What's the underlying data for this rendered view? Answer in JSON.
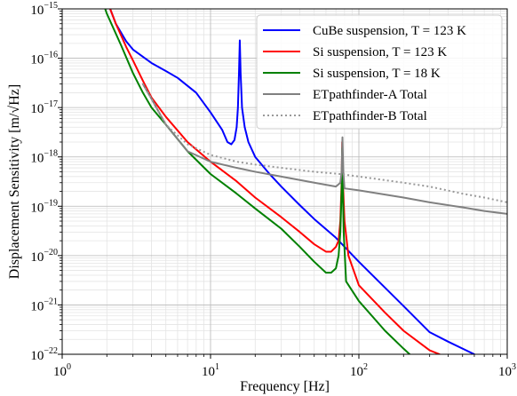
{
  "chart_data": {
    "type": "line",
    "xlabel": "Frequency [Hz]",
    "ylabel": "Displacement Sensitivity [m/√Hz]",
    "xscale": "log",
    "yscale": "log",
    "xlim": [
      1,
      1000
    ],
    "ylim": [
      1e-22,
      1e-15
    ],
    "grid": "on (major and minor)",
    "legend_position": "top-right",
    "x_ticks": [
      {
        "base": "10",
        "exp": "0",
        "value": 1
      },
      {
        "base": "10",
        "exp": "1",
        "value": 10
      },
      {
        "base": "10",
        "exp": "2",
        "value": 100
      },
      {
        "base": "10",
        "exp": "3",
        "value": 1000
      }
    ],
    "y_ticks": [
      {
        "base": "10",
        "exp": "−22",
        "value": 1e-22
      },
      {
        "base": "10",
        "exp": "−21",
        "value": 1e-21
      },
      {
        "base": "10",
        "exp": "−20",
        "value": 1e-20
      },
      {
        "base": "10",
        "exp": "−19",
        "value": 1e-19
      },
      {
        "base": "10",
        "exp": "−18",
        "value": 1e-18
      },
      {
        "base": "10",
        "exp": "−17",
        "value": 1e-17
      },
      {
        "base": "10",
        "exp": "−16",
        "value": 1e-16
      },
      {
        "base": "10",
        "exp": "−15",
        "value": 1e-15
      }
    ],
    "series": [
      {
        "name": "CuBe suspension, T = 123 K",
        "color": "#0000ff",
        "style": "solid",
        "points": [
          [
            2.0,
            1.5e-15
          ],
          [
            2.3,
            5e-16
          ],
          [
            2.7,
            2.2e-16
          ],
          [
            3.0,
            1.5e-16
          ],
          [
            4,
            8e-17
          ],
          [
            5,
            5.5e-17
          ],
          [
            6,
            4e-17
          ],
          [
            8,
            2e-17
          ],
          [
            10,
            8e-18
          ],
          [
            12,
            3.5e-18
          ],
          [
            13,
            2e-18
          ],
          [
            13.8,
            1.8e-18
          ],
          [
            14.5,
            2.2e-18
          ],
          [
            15.0,
            4e-18
          ],
          [
            15.3,
            1e-17
          ],
          [
            15.55,
            5e-17
          ],
          [
            15.75,
            2.3e-16
          ],
          [
            15.95,
            5e-17
          ],
          [
            16.3,
            1e-17
          ],
          [
            17,
            4e-18
          ],
          [
            18,
            2e-18
          ],
          [
            20,
            1e-18
          ],
          [
            25,
            4.5e-19
          ],
          [
            30,
            2.5e-19
          ],
          [
            40,
            1.05e-19
          ],
          [
            50,
            5.5e-20
          ],
          [
            70,
            2.3e-20
          ],
          [
            100,
            7.5e-21
          ],
          [
            200,
            9.5e-22
          ],
          [
            300,
            2.8e-22
          ],
          [
            400,
            1.8e-22
          ],
          [
            600,
            1e-22
          ]
        ]
      },
      {
        "name": "Si suspension, T = 123 K",
        "color": "#ff0000",
        "style": "solid",
        "points": [
          [
            2.0,
            1.5e-15
          ],
          [
            2.3,
            5e-16
          ],
          [
            2.7,
            1.7e-16
          ],
          [
            3.0,
            9e-17
          ],
          [
            3.5,
            3.5e-17
          ],
          [
            4,
            1.6e-17
          ],
          [
            5,
            6.5e-18
          ],
          [
            7,
            2e-18
          ],
          [
            10,
            8e-19
          ],
          [
            15,
            3.2e-19
          ],
          [
            20,
            1.5e-19
          ],
          [
            30,
            6e-20
          ],
          [
            40,
            3e-20
          ],
          [
            50,
            1.7e-20
          ],
          [
            60,
            1.2e-20
          ],
          [
            65,
            1.2e-20
          ],
          [
            70,
            1.5e-20
          ],
          [
            73,
            2e-20
          ],
          [
            75,
            5e-20
          ],
          [
            76.5,
            3e-19
          ],
          [
            77.2,
            2e-18
          ],
          [
            78,
            3e-19
          ],
          [
            80,
            5e-20
          ],
          [
            85,
            1e-20
          ],
          [
            100,
            2.5e-21
          ],
          [
            150,
            7e-22
          ],
          [
            200,
            3e-22
          ],
          [
            300,
            1.2e-22
          ],
          [
            350,
            1e-22
          ]
        ]
      },
      {
        "name": "Si suspension, T = 18 K",
        "color": "#008000",
        "style": "solid",
        "points": [
          [
            1.8,
            2e-15
          ],
          [
            2.0,
            8e-16
          ],
          [
            2.5,
            1.8e-16
          ],
          [
            3.0,
            5e-17
          ],
          [
            3.5,
            2e-17
          ],
          [
            4,
            1e-17
          ],
          [
            5,
            4.5e-18
          ],
          [
            7,
            1.3e-18
          ],
          [
            10,
            4.5e-19
          ],
          [
            15,
            1.8e-19
          ],
          [
            20,
            9e-20
          ],
          [
            30,
            3.5e-20
          ],
          [
            40,
            1.5e-20
          ],
          [
            50,
            7.5e-21
          ],
          [
            60,
            4.5e-21
          ],
          [
            65,
            4.5e-21
          ],
          [
            70,
            5.5e-21
          ],
          [
            73,
            1e-20
          ],
          [
            75,
            3e-20
          ],
          [
            76.5,
            2e-19
          ],
          [
            77.2,
            1.5e-18
          ],
          [
            78,
            2e-19
          ],
          [
            79,
            3e-20
          ],
          [
            82,
            3e-21
          ],
          [
            100,
            1.2e-21
          ],
          [
            150,
            3e-22
          ],
          [
            200,
            1.3e-22
          ],
          [
            220,
            1e-22
          ]
        ]
      },
      {
        "name": "ETpathfinder-A Total",
        "color": "#808080",
        "style": "solid",
        "points": [
          [
            3.5,
            3e-17
          ],
          [
            4,
            1.5e-17
          ],
          [
            5,
            4.5e-18
          ],
          [
            7,
            1.3e-18
          ],
          [
            10,
            8e-19
          ],
          [
            15,
            6e-19
          ],
          [
            20,
            5e-19
          ],
          [
            30,
            4e-19
          ],
          [
            50,
            3e-19
          ],
          [
            70,
            2.5e-19
          ],
          [
            75,
            3e-19
          ],
          [
            76.5,
            5e-19
          ],
          [
            77.5,
            2.5e-18
          ],
          [
            78.5,
            5e-19
          ],
          [
            80,
            2.3e-19
          ],
          [
            100,
            2.1e-19
          ],
          [
            200,
            1.5e-19
          ],
          [
            300,
            1.2e-19
          ],
          [
            500,
            9.5e-20
          ],
          [
            700,
            8e-20
          ],
          [
            1000,
            7e-20
          ]
        ]
      },
      {
        "name": "ETpathfinder-B Total",
        "color": "#999999",
        "style": "dotted",
        "points": [
          [
            3.5,
            3e-17
          ],
          [
            4,
            1.5e-17
          ],
          [
            5,
            4.5e-18
          ],
          [
            7,
            1.8e-18
          ],
          [
            10,
            1.1e-18
          ],
          [
            15,
            8e-19
          ],
          [
            20,
            7e-19
          ],
          [
            30,
            6e-19
          ],
          [
            50,
            5e-19
          ],
          [
            75,
            4.5e-19
          ],
          [
            100,
            4e-19
          ],
          [
            200,
            3e-19
          ],
          [
            300,
            2.5e-19
          ],
          [
            500,
            1.8e-19
          ],
          [
            700,
            1.5e-19
          ],
          [
            1000,
            1.2e-19
          ]
        ]
      }
    ]
  }
}
